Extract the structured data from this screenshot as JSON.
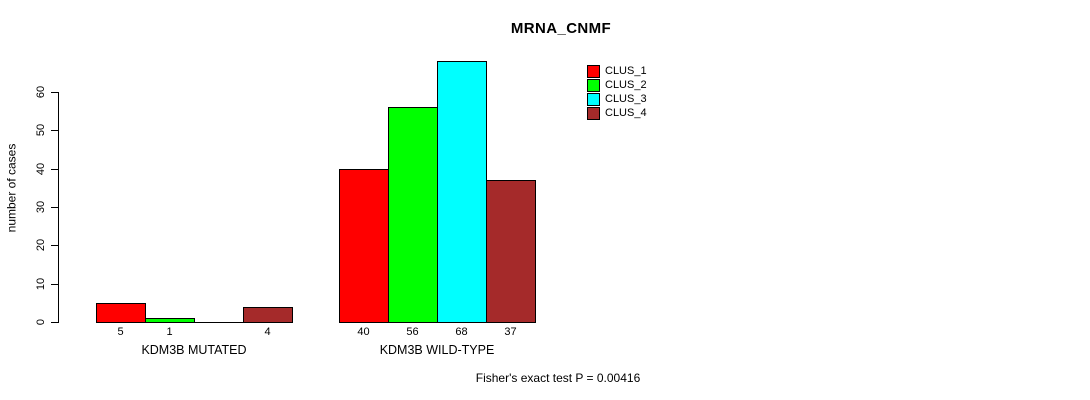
{
  "chart_data": {
    "type": "bar",
    "title": "MRNA_CNMF",
    "ylabel": "number of cases",
    "ylim": [
      0,
      60
    ],
    "yticks": [
      0,
      10,
      20,
      30,
      40,
      50,
      60
    ],
    "grid": false,
    "categories": [
      "KDM3B MUTATED",
      "KDM3B WILD-TYPE"
    ],
    "series": [
      {
        "name": "CLUS_1",
        "color": "#FF0000",
        "values": [
          5,
          40
        ]
      },
      {
        "name": "CLUS_2",
        "color": "#00FF00",
        "values": [
          1,
          56
        ]
      },
      {
        "name": "CLUS_3",
        "color": "#00FFFF",
        "values": [
          0,
          68
        ]
      },
      {
        "name": "CLUS_4",
        "color": "#A52A2A",
        "values": [
          4,
          37
        ]
      }
    ],
    "bar_labels": [
      [
        "5",
        "1",
        "",
        "4"
      ],
      [
        "40",
        "56",
        "68",
        "37"
      ]
    ],
    "legend": {
      "position": "top-right",
      "entries": [
        "CLUS_1",
        "CLUS_2",
        "CLUS_3",
        "CLUS_4"
      ]
    },
    "annotation": "Fisher's exact test P = 0.00416",
    "axis_color": "#000000",
    "background_color": "#FFFFFF"
  }
}
